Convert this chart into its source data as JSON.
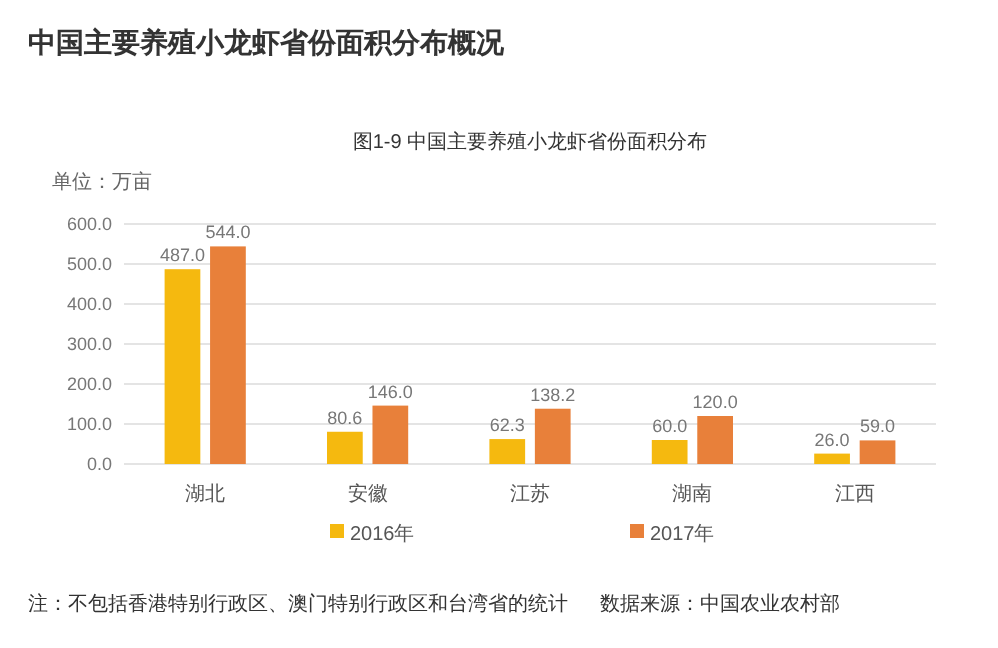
{
  "chart_data": {
    "type": "bar",
    "title": "中国主要养殖小龙虾省份面积分布概况",
    "subtitle": "图1-9 中国主要养殖小龙虾省份面积分布",
    "ylabel": "单位：万亩",
    "categories": [
      "湖北",
      "安徽",
      "江苏",
      "湖南",
      "江西"
    ],
    "series": [
      {
        "name": "2016年",
        "color": "#f5b90f",
        "values": [
          487.0,
          80.6,
          62.3,
          60.0,
          26.0
        ],
        "value_labels": [
          "487.0",
          "80.6",
          "62.3",
          "60.0",
          "26.0"
        ]
      },
      {
        "name": "2017年",
        "color": "#e8803a",
        "values": [
          544.0,
          146.0,
          138.2,
          120.0,
          59.0
        ],
        "value_labels": [
          "544.0",
          "146.0",
          "138.2",
          "120.0",
          "59.0"
        ]
      }
    ],
    "ylim": [
      0,
      600
    ],
    "yticks": [
      {
        "value": 0,
        "label": "0.0"
      },
      {
        "value": 100,
        "label": "100.0"
      },
      {
        "value": 200,
        "label": "200.0"
      },
      {
        "value": 300,
        "label": "300.0"
      },
      {
        "value": 400,
        "label": "400.0"
      },
      {
        "value": 500,
        "label": "500.0"
      },
      {
        "value": 600,
        "label": "600.0"
      }
    ],
    "grid": "y",
    "legend": "bottom",
    "annotations": [
      "注：不包括香港特别行政区、澳门特别行政区和台湾省的统计",
      "数据来源：中国农业农村部"
    ]
  }
}
